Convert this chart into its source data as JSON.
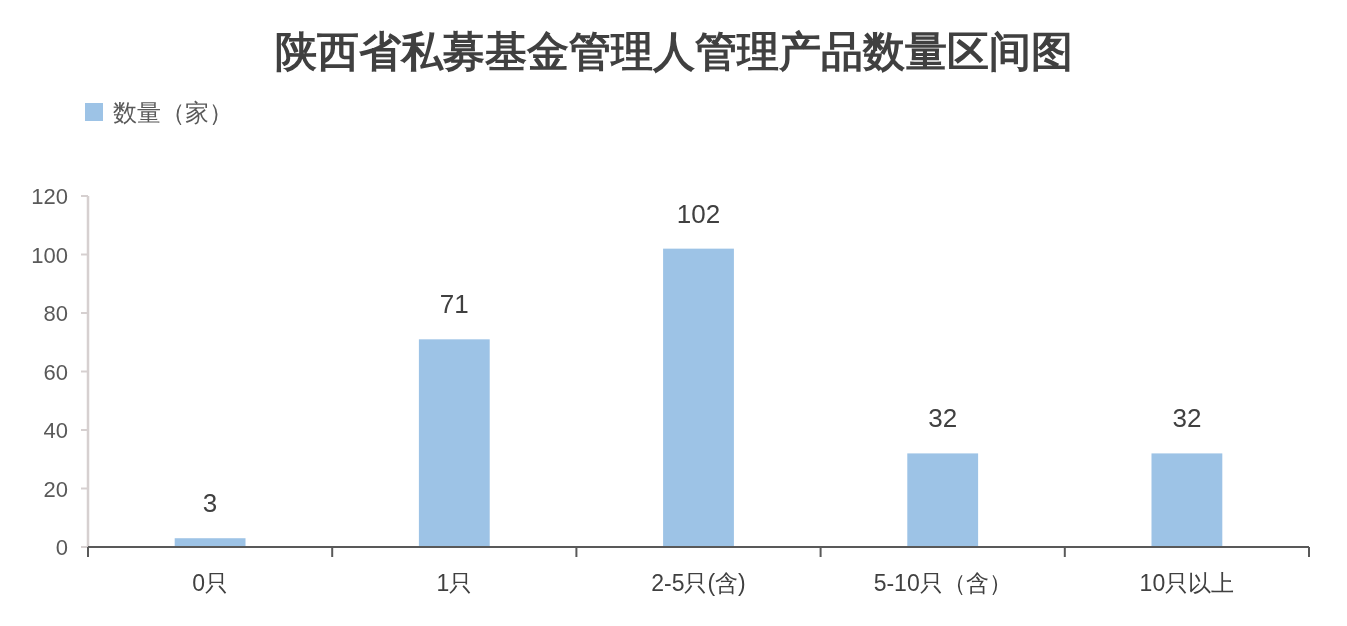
{
  "chart_data": {
    "type": "bar",
    "title": "陕西省私募基金管理人管理产品数量区间图",
    "categories": [
      "0只",
      "1只",
      "2-5只(含)",
      "5-10只（含）",
      "10只以上"
    ],
    "series": [
      {
        "name": "数量（家）",
        "color": "#9dc3e6",
        "values": [
          3,
          71,
          102,
          32,
          32
        ]
      }
    ],
    "ylim": [
      0,
      120
    ],
    "yticks": [
      0,
      20,
      40,
      60,
      80,
      100,
      120
    ],
    "data_labels": true,
    "legend": "top left",
    "grid": false
  }
}
